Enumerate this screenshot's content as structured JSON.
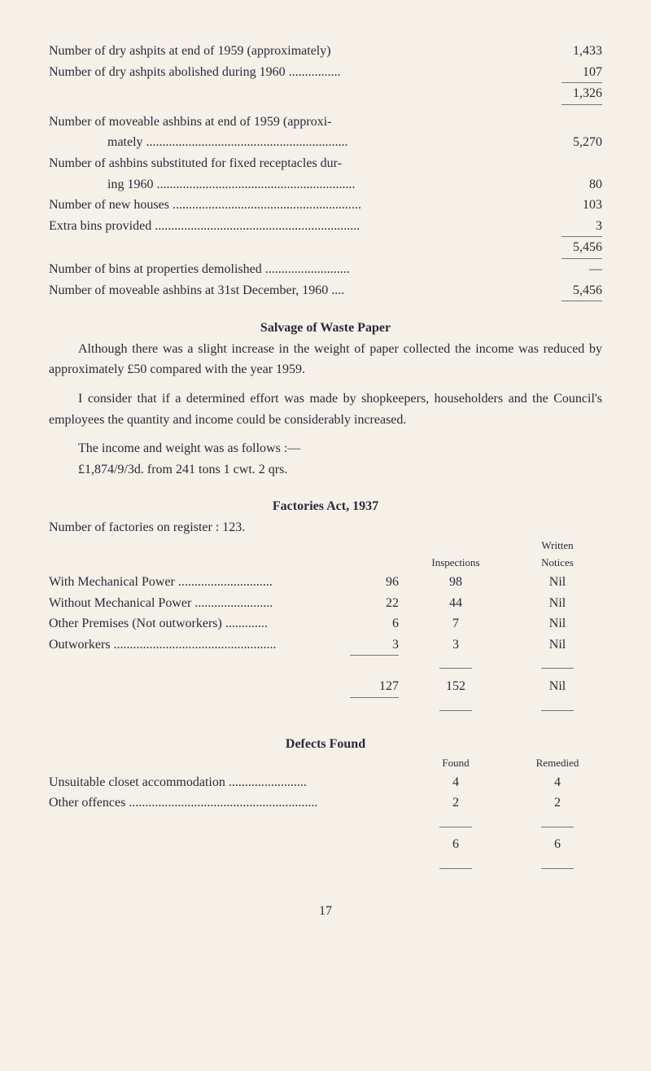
{
  "ashpits": {
    "line1": {
      "label": "Number of dry ashpits at end of 1959 (approximately)",
      "value": "1,433"
    },
    "line2": {
      "label": "Number of dry ashpits abolished during 1960 ................",
      "value": "107"
    },
    "total": "1,326"
  },
  "ashbins": {
    "line1": {
      "label": "Number of moveable ashbins at end of 1959 (approxi-",
      "label2": "mately ..............................................................",
      "value": "5,270"
    },
    "line2": {
      "label": "Number of ashbins substituted for fixed receptacles dur-",
      "label2": "ing 1960 .............................................................",
      "value": "80"
    },
    "line3": {
      "label": "Number of new houses ..........................................................",
      "value": "103"
    },
    "line4": {
      "label": "Extra bins provided ...............................................................",
      "value": "3"
    },
    "total": "5,456",
    "line5": {
      "label": "Number of bins at properties demolished ..........................",
      "value": "—"
    },
    "line6": {
      "label": "Number of moveable ashbins at 31st December, 1960 ....",
      "value": "5,456"
    }
  },
  "salvage": {
    "header": "Salvage of Waste Paper",
    "p1": "Although there was a slight increase in the weight of paper collected the income was reduced by approximately £50 compared with the year 1959.",
    "p2": "I consider that if a determined effort was made by shopkeepers, householders and the Council's employees the quantity and income could be considerably increased.",
    "p3": "The income and weight was as follows :—",
    "p4": "£1,874/9/3d. from 241 tons 1 cwt. 2 qrs."
  },
  "factories": {
    "header": "Factories Act, 1937",
    "intro": "Number of factories on register : 123.",
    "colh2": "Inspections",
    "colh3a": "Written",
    "colh3b": "Notices",
    "rows": [
      {
        "c1": "With Mechanical Power .............................",
        "c2": "96",
        "c3": "98",
        "c4": "Nil"
      },
      {
        "c1": "Without Mechanical Power ........................",
        "c2": "22",
        "c3": "44",
        "c4": "Nil"
      },
      {
        "c1": "Other Premises (Not outworkers) .............",
        "c2": "6",
        "c3": "7",
        "c4": "Nil"
      },
      {
        "c1": "Outworkers ..................................................",
        "c2": "3",
        "c3": "3",
        "c4": "Nil"
      }
    ],
    "totals": {
      "c2": "127",
      "c3": "152",
      "c4": "Nil"
    }
  },
  "defects": {
    "header": "Defects Found",
    "colh2": "Found",
    "colh3": "Remedied",
    "rows": [
      {
        "c1": "Unsuitable closet accommodation ........................",
        "c2": "4",
        "c3": "4"
      },
      {
        "c1": "Other offences ..........................................................",
        "c2": "2",
        "c3": "2"
      }
    ],
    "totals": {
      "c2": "6",
      "c3": "6"
    }
  },
  "page": "17"
}
